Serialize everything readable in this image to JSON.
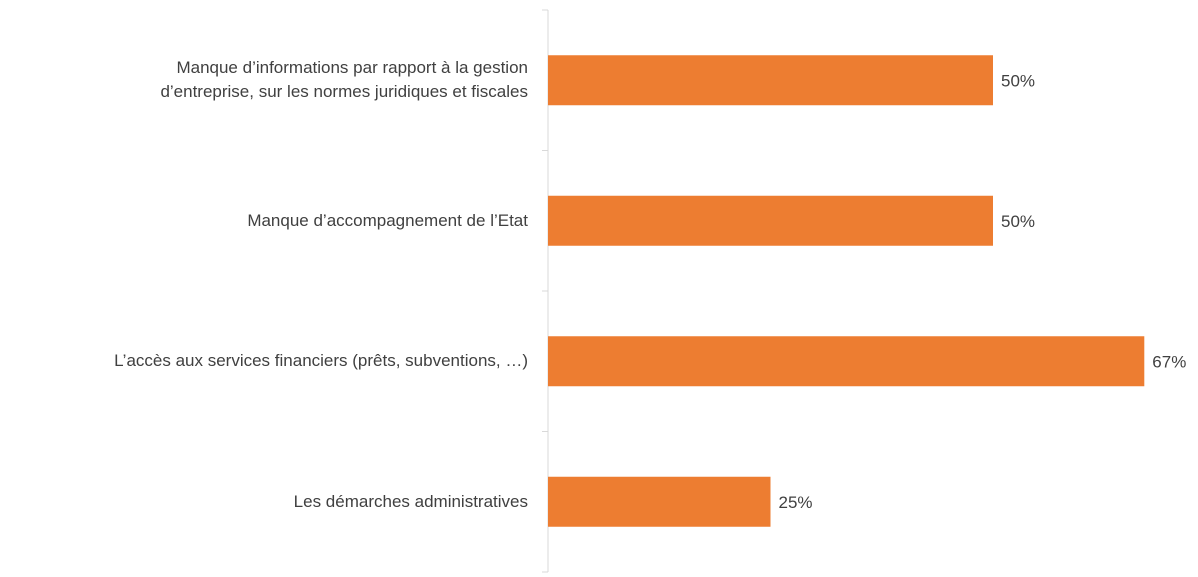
{
  "chart_data": {
    "type": "bar",
    "orientation": "horizontal",
    "categories": [
      "Manque d’informations par rapport à la gestion\nd’entreprise, sur les normes juridiques et fiscales",
      "Manque d’accompagnement de l’Etat",
      "L’accès aux services financiers (prêts, subventions, …)",
      "Les démarches administratives"
    ],
    "values": [
      50,
      50,
      67,
      25
    ],
    "value_labels": [
      "50%",
      "50%",
      "67%",
      "25%"
    ],
    "color": "#ED7D31",
    "xlim": [
      0,
      70
    ]
  }
}
